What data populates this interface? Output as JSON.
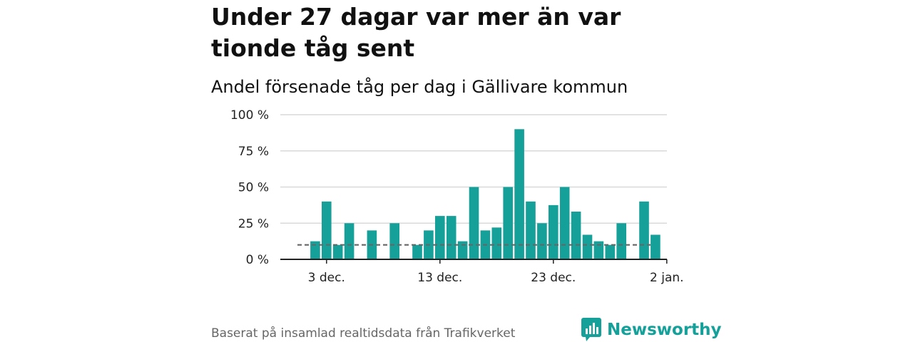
{
  "header": {
    "title": "Under 27 dagar var mer än var tionde tåg sent",
    "subtitle": "Andel försenade tåg per dag i Gällivare kommun"
  },
  "footer": {
    "source": "Baserat på insamlad realtidsdata från Trafikverket",
    "brand": "Newsworthy"
  },
  "colors": {
    "bar": "#15a09a",
    "grid": "#d9d9d9",
    "reference_line": "#666666",
    "brand": "#15a09a"
  },
  "chart_data": {
    "type": "bar",
    "y_ticks": [
      "100 %",
      "75 %",
      "50 %",
      "25 %",
      "0 %"
    ],
    "x_ticks": [
      "3 dec.",
      "13 dec.",
      "23 dec.",
      "2 jan."
    ],
    "ylim": [
      0,
      100
    ],
    "reference_line": 10,
    "grid": true,
    "series": [
      {
        "values": [
          {
            "x": "2 dec.",
            "y": 12.5
          },
          {
            "x": "3 dec.",
            "y": 40
          },
          {
            "x": "4 dec.",
            "y": 10
          },
          {
            "x": "5 dec.",
            "y": 25
          },
          {
            "x": "7 dec.",
            "y": 20
          },
          {
            "x": "9 dec.",
            "y": 25
          },
          {
            "x": "11 dec.",
            "y": 10
          },
          {
            "x": "12 dec.",
            "y": 20
          },
          {
            "x": "13 dec.",
            "y": 30
          },
          {
            "x": "14 dec.",
            "y": 30
          },
          {
            "x": "15 dec.",
            "y": 12.5
          },
          {
            "x": "16 dec.",
            "y": 50
          },
          {
            "x": "17 dec.",
            "y": 20
          },
          {
            "x": "18 dec.",
            "y": 22
          },
          {
            "x": "19 dec.",
            "y": 50
          },
          {
            "x": "20 dec.",
            "y": 90
          },
          {
            "x": "21 dec.",
            "y": 40
          },
          {
            "x": "22 dec.",
            "y": 25
          },
          {
            "x": "23 dec.",
            "y": 37.5
          },
          {
            "x": "24 dec.",
            "y": 50
          },
          {
            "x": "25 dec.",
            "y": 33
          },
          {
            "x": "26 dec.",
            "y": 17
          },
          {
            "x": "27 dec.",
            "y": 12.5
          },
          {
            "x": "28 dec.",
            "y": 10
          },
          {
            "x": "29 dec.",
            "y": 25
          },
          {
            "x": "31 dec.",
            "y": 40
          },
          {
            "x": "1 jan.",
            "y": 17
          }
        ]
      }
    ]
  }
}
